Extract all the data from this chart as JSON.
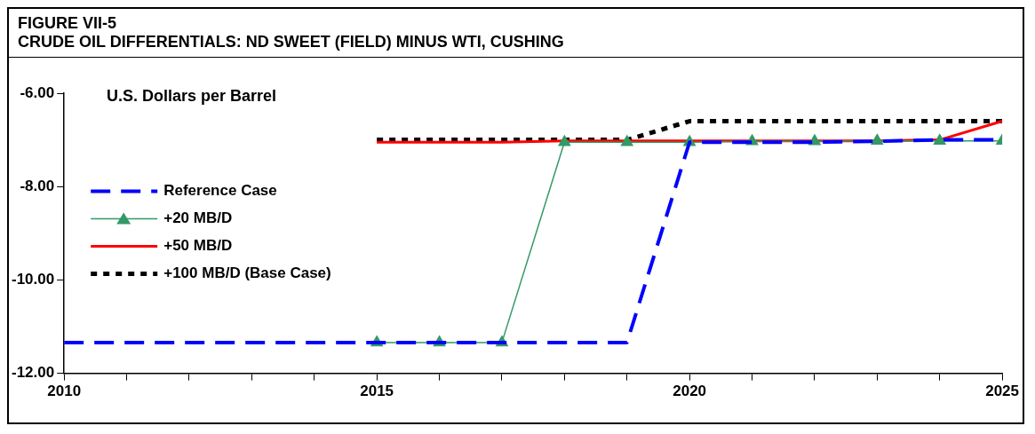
{
  "chart_data": {
    "type": "line",
    "title": "FIGURE VII-5",
    "subtitle": "CRUDE OIL DIFFERENTIALS: ND SWEET (FIELD) MINUS WTI, CUSHING",
    "ylabel": "U.S. Dollars per Barrel",
    "xlim": [
      2010,
      2025
    ],
    "ylim": [
      -12,
      -6
    ],
    "xticks": [
      2010,
      {
        "value": 2011,
        "label": null
      },
      {
        "value": 2012,
        "label": null
      },
      {
        "value": 2013,
        "label": null
      },
      {
        "value": 2014,
        "label": null
      },
      2015,
      {
        "value": 2016,
        "label": null
      },
      {
        "value": 2017,
        "label": null
      },
      {
        "value": 2018,
        "label": null
      },
      {
        "value": 2019,
        "label": null
      },
      2020,
      {
        "value": 2021,
        "label": null
      },
      {
        "value": 2022,
        "label": null
      },
      {
        "value": 2023,
        "label": null
      },
      {
        "value": 2024,
        "label": null
      },
      2025
    ],
    "yticks": [
      {
        "value": -12,
        "label": "-12.00"
      },
      {
        "value": -10,
        "label": "-10.00"
      },
      {
        "value": -8,
        "label": "-8.00"
      },
      {
        "value": -6,
        "label": "-6.00"
      }
    ],
    "grid": false,
    "legend": "left",
    "series": [
      {
        "name": "Reference Case",
        "color": "#0000ff",
        "line_style": "dashed",
        "marker": "none",
        "x": [
          2010,
          2011,
          2012,
          2013,
          2014,
          2015,
          2016,
          2017,
          2018,
          2019,
          2020,
          2021,
          2022,
          2023,
          2024,
          2025
        ],
        "values": [
          -11.34,
          -11.34,
          -11.34,
          -11.34,
          -11.34,
          -11.34,
          -11.34,
          -11.34,
          -11.34,
          -11.34,
          -7.05,
          -7.05,
          -7.05,
          -7.03,
          -7.0,
          -7.0
        ]
      },
      {
        "name": "+20 MB/D",
        "color": "#339966",
        "line_style": "solid",
        "marker": "triangle",
        "x": [
          2015,
          2016,
          2017,
          2018,
          2019,
          2020,
          2021,
          2022,
          2023,
          2024,
          2025
        ],
        "values": [
          -11.34,
          -11.34,
          -11.34,
          -7.05,
          -7.05,
          -7.05,
          -7.03,
          -7.03,
          -7.02,
          -7.02,
          -7.02
        ]
      },
      {
        "name": "+50 MB/D",
        "color": "#ff0000",
        "line_style": "solid",
        "marker": "none",
        "x": [
          2015,
          2016,
          2017,
          2018,
          2019,
          2020,
          2021,
          2022,
          2023,
          2024,
          2025
        ],
        "values": [
          -7.05,
          -7.05,
          -7.05,
          -7.02,
          -7.02,
          -7.02,
          -7.02,
          -7.02,
          -7.02,
          -7.0,
          -6.6
        ]
      },
      {
        "name": "+100 MB/D (Base Case)",
        "color": "#000000",
        "line_style": "dotted",
        "marker": "none",
        "x": [
          2015,
          2016,
          2017,
          2018,
          2019,
          2020,
          2021,
          2022,
          2023,
          2024,
          2025
        ],
        "values": [
          -7.0,
          -7.0,
          -7.0,
          -7.0,
          -7.0,
          -6.6,
          -6.6,
          -6.6,
          -6.6,
          -6.6,
          -6.6
        ]
      }
    ]
  }
}
